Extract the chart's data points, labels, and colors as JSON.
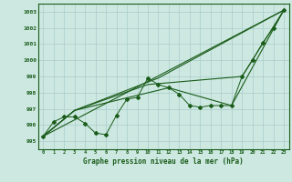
{
  "title": "Graphe pression niveau de la mer (hPa)",
  "xlim": [
    -0.5,
    23.5
  ],
  "ylim": [
    994.5,
    1003.5
  ],
  "yticks": [
    995,
    996,
    997,
    998,
    999,
    1000,
    1001,
    1002,
    1003
  ],
  "xticks": [
    0,
    1,
    2,
    3,
    4,
    5,
    6,
    7,
    8,
    9,
    10,
    11,
    12,
    13,
    14,
    15,
    16,
    17,
    18,
    19,
    20,
    21,
    22,
    23
  ],
  "background_color": "#cce8e0",
  "grid_color": "#aacccc",
  "line_color": "#1a5c1a",
  "series_main": {
    "x": [
      0,
      1,
      2,
      3,
      4,
      5,
      6,
      7,
      8,
      9,
      10,
      11,
      12,
      13,
      14,
      15,
      16,
      17,
      18,
      19,
      20,
      21,
      22,
      23
    ],
    "y": [
      995.3,
      996.2,
      996.5,
      996.5,
      996.1,
      995.5,
      995.4,
      996.6,
      997.6,
      997.7,
      998.9,
      998.5,
      998.3,
      997.9,
      997.2,
      997.1,
      997.2,
      997.2,
      997.2,
      999.0,
      1000.0,
      1001.1,
      1002.0,
      1003.1
    ]
  },
  "trend1": {
    "x": [
      0,
      23
    ],
    "y": [
      995.3,
      1003.1
    ]
  },
  "trend2": {
    "x": [
      0,
      3,
      11,
      23
    ],
    "y": [
      995.3,
      996.9,
      998.9,
      1003.1
    ]
  },
  "trend3": {
    "x": [
      0,
      3,
      10,
      19,
      23
    ],
    "y": [
      995.3,
      996.9,
      998.5,
      999.0,
      1003.1
    ]
  },
  "trend4": {
    "x": [
      0,
      3,
      12,
      18,
      23
    ],
    "y": [
      995.3,
      996.9,
      998.3,
      997.2,
      1003.1
    ]
  }
}
